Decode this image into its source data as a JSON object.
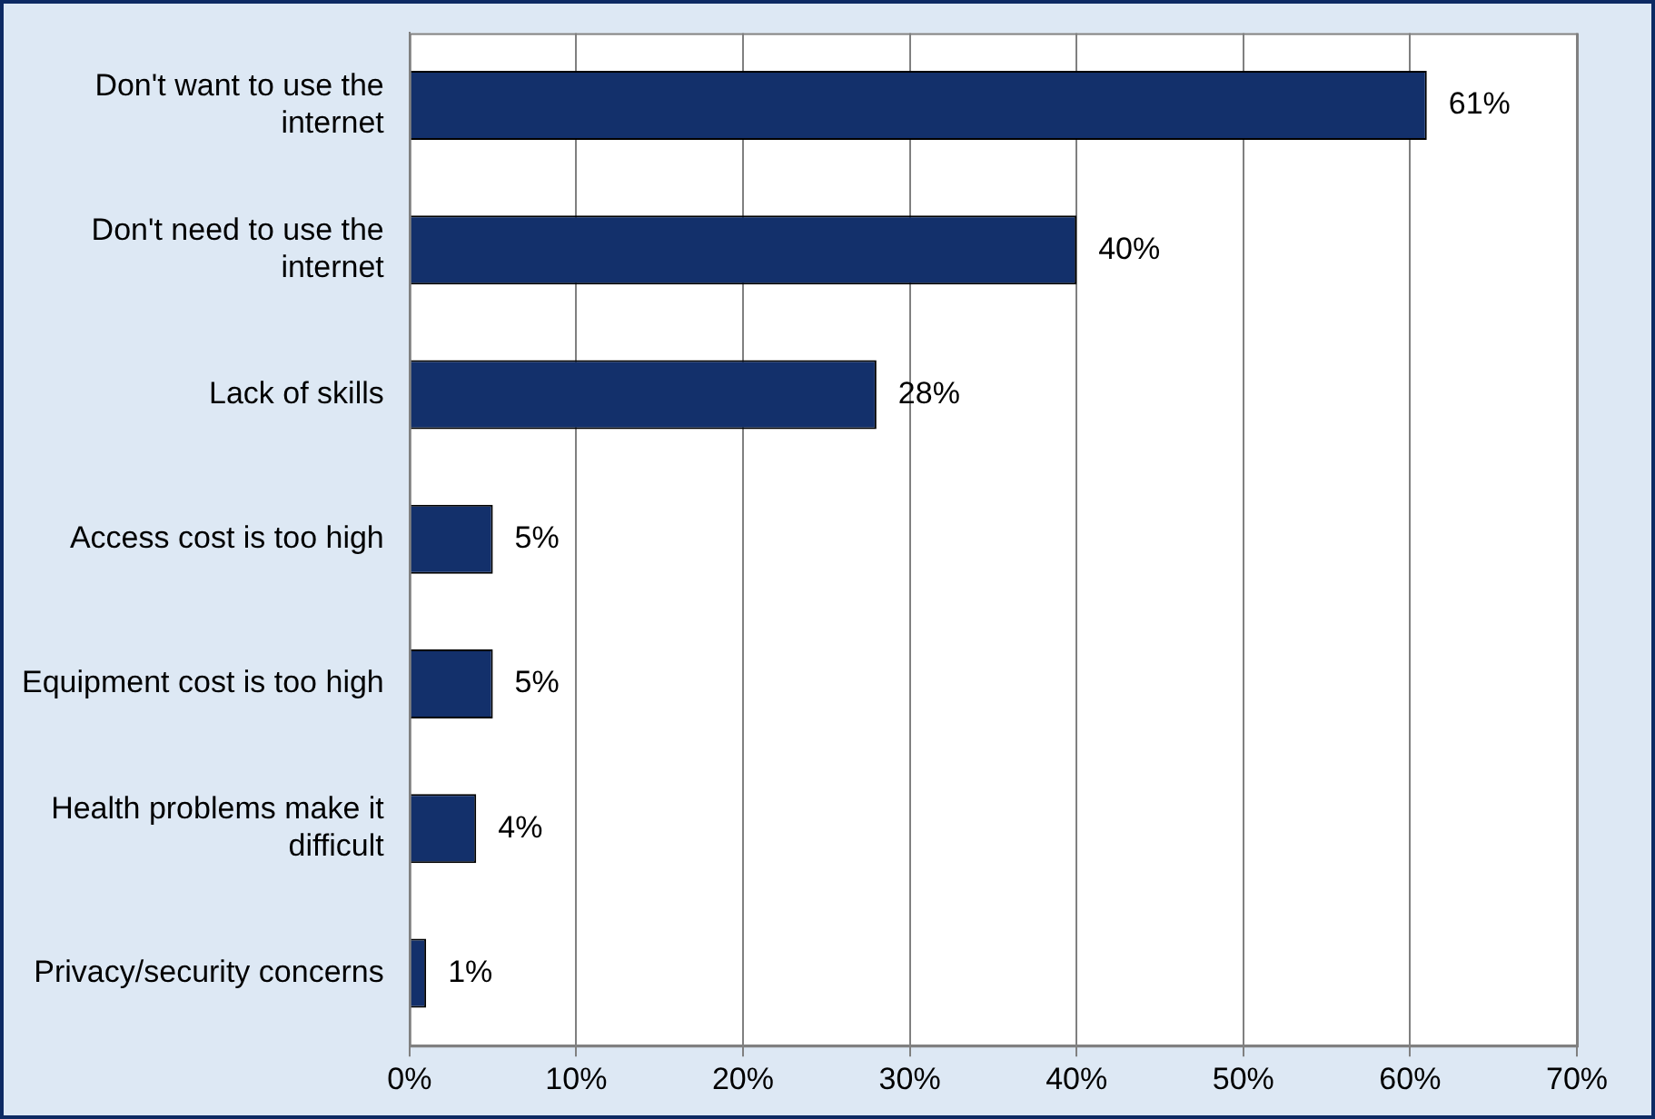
{
  "chart_data": {
    "type": "bar",
    "orientation": "horizontal",
    "categories": [
      "Don't want to use the internet",
      "Don't need to use the internet",
      "Lack of skills",
      "Access cost is too high",
      "Equipment cost is too high",
      "Health problems make it difficult",
      "Privacy/security concerns"
    ],
    "values": [
      61,
      40,
      28,
      5,
      5,
      4,
      1
    ],
    "value_labels": [
      "61%",
      "40%",
      "28%",
      "5%",
      "5%",
      "4%",
      "1%"
    ],
    "color": "#13306b",
    "xlim": [
      0,
      70
    ],
    "xticks": [
      {
        "value": 0,
        "label": "0%"
      },
      {
        "value": 10,
        "label": "10%"
      },
      {
        "value": 20,
        "label": "20%"
      },
      {
        "value": 30,
        "label": "30%"
      },
      {
        "value": 40,
        "label": "40%"
      },
      {
        "value": 50,
        "label": "50%"
      },
      {
        "value": 60,
        "label": "60%"
      },
      {
        "value": 70,
        "label": "70%"
      }
    ],
    "grid": "x"
  }
}
